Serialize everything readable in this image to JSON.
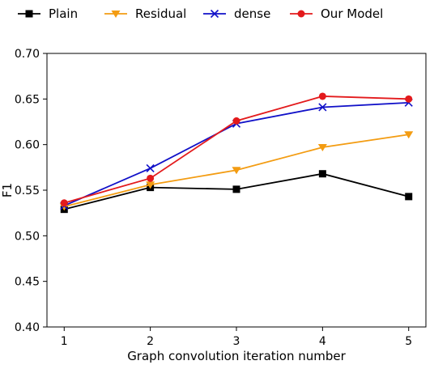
{
  "chart_data": {
    "type": "line",
    "x": [
      1,
      2,
      3,
      4,
      5
    ],
    "series": [
      {
        "name": "Plain",
        "values": [
          0.529,
          0.553,
          0.551,
          0.568,
          0.543
        ],
        "color": "#000000",
        "marker": "square"
      },
      {
        "name": "Residual",
        "values": [
          0.532,
          0.556,
          0.572,
          0.597,
          0.611
        ],
        "color": "#f39c12",
        "marker": "triangle-down"
      },
      {
        "name": "dense",
        "values": [
          0.533,
          0.574,
          0.623,
          0.641,
          0.646
        ],
        "color": "#1010c8",
        "marker": "x"
      },
      {
        "name": "Our Model",
        "values": [
          0.536,
          0.563,
          0.626,
          0.653,
          0.65
        ],
        "color": "#e31a1c",
        "marker": "circle"
      }
    ],
    "xlabel": "Graph convolution iteration number",
    "ylabel": "F1",
    "xlim": [
      0.8,
      5.2
    ],
    "ylim": [
      0.4,
      0.7
    ],
    "xticks": [
      "1",
      "2",
      "3",
      "4",
      "5"
    ],
    "yticks": [
      "0.40",
      "0.45",
      "0.50",
      "0.55",
      "0.60",
      "0.65",
      "0.70"
    ],
    "grid": false,
    "legend_position": "top, above plot"
  }
}
